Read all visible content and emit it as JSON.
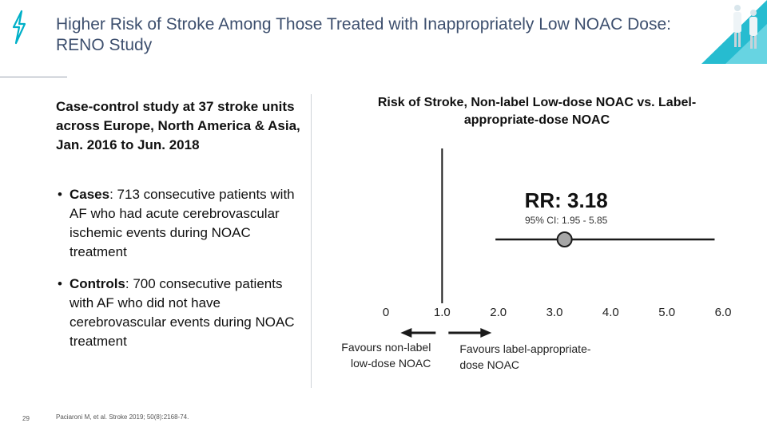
{
  "slide": {
    "title": "Higher Risk of Stroke Among Those Treated with Inappropriately Low NOAC Dose: RENO Study",
    "study_description": "Case-control study at 37 stroke units across Europe, North America & Asia, Jan. 2016 to Jun. 2018",
    "bullets": [
      {
        "term": "Cases",
        "text": ": 713 consecutive patients with AF who had acute cerebrovascular ischemic events during NOAC treatment"
      },
      {
        "term": "Controls",
        "text": ": 700 consecutive patients with AF who did not have cerebrovascular events during NOAC treatment"
      }
    ],
    "source": "Paciaroni M, et al. Stroke 2019; 50(8):2168-74.",
    "page_number": "29"
  },
  "chart_data": {
    "type": "scatter",
    "title": "Risk of Stroke, Non-label Low-dose NOAC vs. Label-appropriate-dose NOAC",
    "estimate_label": "RR: 3.18",
    "ci_label": "95% CI: 1.95 - 5.85",
    "point": 3.18,
    "ci": [
      1.95,
      5.85
    ],
    "reference_line": 1.0,
    "xlim": [
      0,
      6.0
    ],
    "ticks": [
      {
        "value": 0,
        "label": "0"
      },
      {
        "value": 1,
        "label": "1.0"
      },
      {
        "value": 2,
        "label": "2.0"
      },
      {
        "value": 3,
        "label": "3.0"
      },
      {
        "value": 4,
        "label": "4.0"
      },
      {
        "value": 5,
        "label": "5.0"
      },
      {
        "value": 6,
        "label": "6.0"
      }
    ],
    "favours_left": [
      "Favours non-label",
      "low-dose NOAC"
    ],
    "favours_right": [
      "Favours label-appropriate-",
      "dose NOAC"
    ]
  },
  "colors": {
    "title": "#3d4f6e",
    "accent": "#00b0c8",
    "point_fill": "#a6a6a6",
    "line": "#1a1a1a"
  },
  "icons": {
    "logo": "teal-lightning-bolt-icon",
    "corner": "doctors-illustration-icon"
  }
}
